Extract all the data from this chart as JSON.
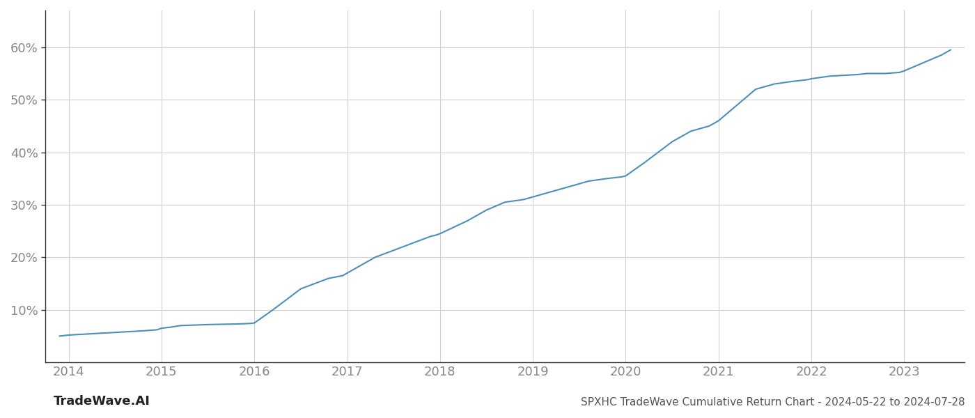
{
  "x_values": [
    2013.9,
    2014.0,
    2014.2,
    2014.4,
    2014.6,
    2014.8,
    2014.95,
    2015.0,
    2015.1,
    2015.2,
    2015.5,
    2015.8,
    2015.95,
    2016.0,
    2016.2,
    2016.5,
    2016.8,
    2016.95,
    2017.0,
    2017.3,
    2017.6,
    2017.9,
    2017.95,
    2018.0,
    2018.3,
    2018.5,
    2018.7,
    2018.9,
    2019.0,
    2019.2,
    2019.4,
    2019.6,
    2019.8,
    2019.95,
    2020.0,
    2020.2,
    2020.5,
    2020.7,
    2020.9,
    2020.95,
    2021.0,
    2021.2,
    2021.4,
    2021.5,
    2021.6,
    2021.8,
    2021.95,
    2022.0,
    2022.2,
    2022.5,
    2022.6,
    2022.8,
    2022.95,
    2023.0,
    2023.2,
    2023.4,
    2023.5
  ],
  "y_values": [
    5.0,
    5.2,
    5.4,
    5.6,
    5.8,
    6.0,
    6.2,
    6.5,
    6.7,
    7.0,
    7.2,
    7.3,
    7.4,
    7.5,
    10.0,
    14.0,
    16.0,
    16.5,
    17.0,
    20.0,
    22.0,
    24.0,
    24.2,
    24.5,
    27.0,
    29.0,
    30.5,
    31.0,
    31.5,
    32.5,
    33.5,
    34.5,
    35.0,
    35.3,
    35.5,
    38.0,
    42.0,
    44.0,
    45.0,
    45.5,
    46.0,
    49.0,
    52.0,
    52.5,
    53.0,
    53.5,
    53.8,
    54.0,
    54.5,
    54.8,
    55.0,
    55.0,
    55.2,
    55.5,
    57.0,
    58.5,
    59.5
  ],
  "line_color": "#4a90b8",
  "line_width": 1.5,
  "background_color": "#ffffff",
  "grid_color": "#d0d0d0",
  "title": "SPXHC TradeWave Cumulative Return Chart - 2024-05-22 to 2024-07-28",
  "watermark": "TradeWave.AI",
  "x_tick_labels": [
    "2014",
    "2015",
    "2016",
    "2017",
    "2018",
    "2019",
    "2020",
    "2021",
    "2022",
    "2023"
  ],
  "x_tick_positions": [
    2014,
    2015,
    2016,
    2017,
    2018,
    2019,
    2020,
    2021,
    2022,
    2023
  ],
  "y_ticks": [
    10,
    20,
    30,
    40,
    50,
    60
  ],
  "y_tick_labels": [
    "10%",
    "20%",
    "30%",
    "40%",
    "50%",
    "60%"
  ],
  "xlim": [
    2013.75,
    2023.65
  ],
  "ylim": [
    0,
    67
  ],
  "title_fontsize": 11,
  "watermark_fontsize": 13,
  "tick_fontsize": 13,
  "tick_color": "#888888",
  "left_spine_color": "#333333",
  "bottom_spine_color": "#333333",
  "title_color": "#555555",
  "watermark_color": "#222222"
}
